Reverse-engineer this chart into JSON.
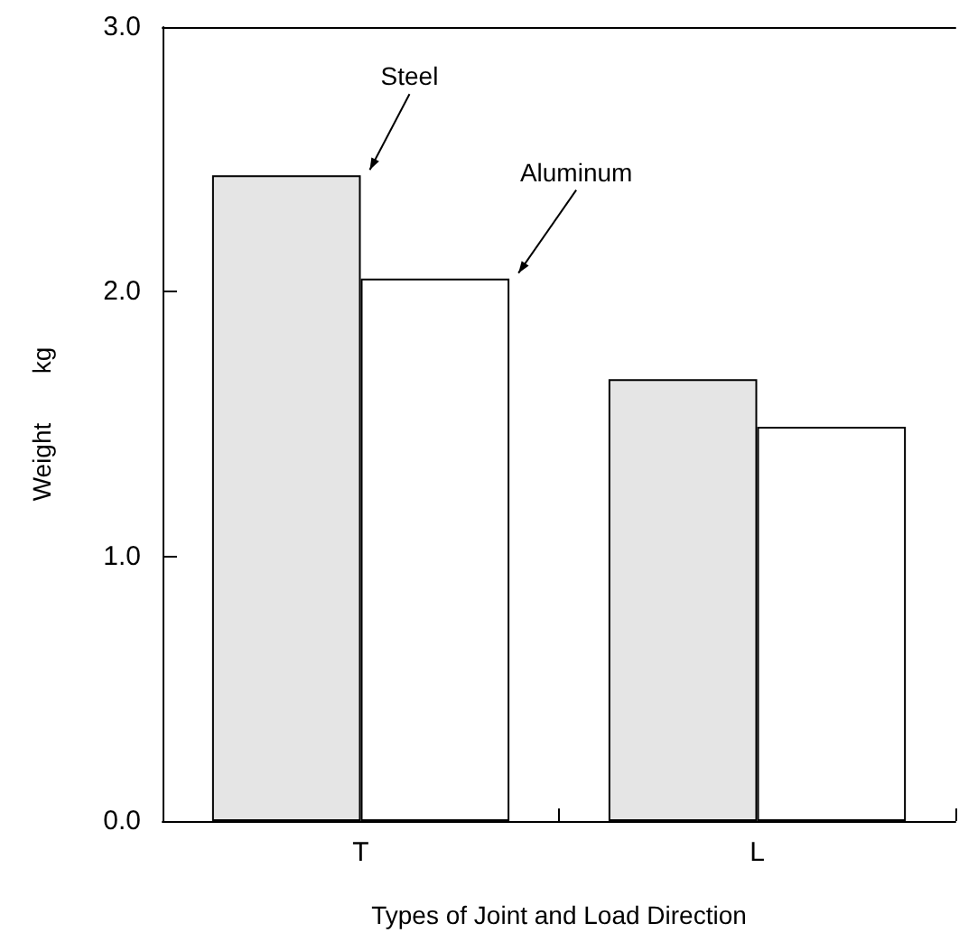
{
  "chart_data": {
    "type": "bar",
    "xlabel": "Types of Joint and Load Direction",
    "ylabel": "Weight       kg",
    "categories": [
      "T",
      "L"
    ],
    "series": [
      {
        "name": "Steel",
        "color": "#e5e5e5",
        "values": [
          2.44,
          1.67
        ]
      },
      {
        "name": "Aluminum",
        "color": "#ffffff",
        "values": [
          2.05,
          1.49
        ]
      }
    ],
    "ylim": [
      0,
      3
    ],
    "yticks": [
      {
        "value": 0,
        "label": "0.0"
      },
      {
        "value": 1,
        "label": "1.0"
      },
      {
        "value": 2,
        "label": "2.0"
      },
      {
        "value": 3,
        "label": "3.0"
      }
    ],
    "grid": false,
    "legend": false
  }
}
